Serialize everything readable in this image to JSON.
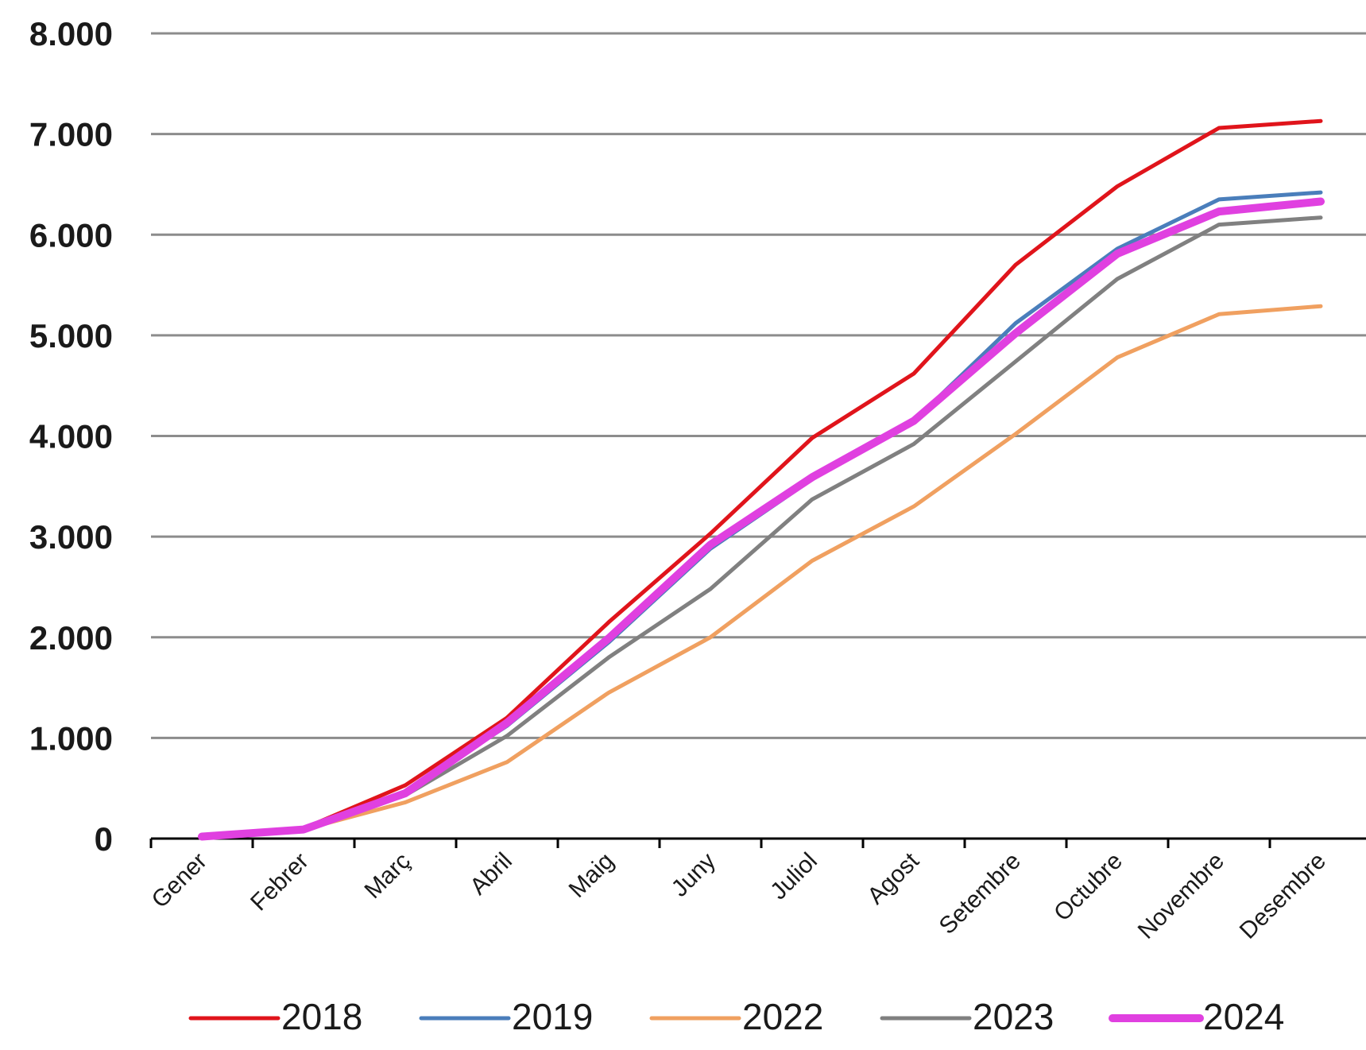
{
  "chart_data": {
    "type": "line",
    "title": "",
    "xlabel": "",
    "ylabel": "",
    "categories": [
      "Gener",
      "Febrer",
      "Març",
      "Abril",
      "Maig",
      "Juny",
      "Juliol",
      "Agost",
      "Setembre",
      "Octubre",
      "Novembre",
      "Desembre"
    ],
    "ylim": [
      0,
      8000
    ],
    "yticks": [
      0,
      1000,
      2000,
      3000,
      4000,
      5000,
      6000,
      7000,
      8000
    ],
    "ytick_labels": [
      "0",
      "1.000",
      "2.000",
      "3.000",
      "4.000",
      "5.000",
      "6.000",
      "7.000",
      "8.000"
    ],
    "grid": "horizontal",
    "legend_position": "bottom",
    "series": [
      {
        "name": "2018",
        "color": "#e0141b",
        "values": [
          20,
          100,
          530,
          1200,
          2150,
          3030,
          3980,
          4620,
          5700,
          6480,
          7060,
          7130
        ]
      },
      {
        "name": "2019",
        "color": "#4a7ebb",
        "values": [
          20,
          90,
          470,
          1120,
          1950,
          2880,
          3570,
          4150,
          5120,
          5860,
          6350,
          6420
        ]
      },
      {
        "name": "2022",
        "color": "#f0a060",
        "values": [
          20,
          90,
          360,
          760,
          1450,
          2000,
          2760,
          3300,
          4020,
          4780,
          5210,
          5290
        ]
      },
      {
        "name": "2023",
        "color": "#808080",
        "values": [
          20,
          90,
          430,
          1020,
          1800,
          2480,
          3370,
          3920,
          4740,
          5560,
          6100,
          6170
        ]
      },
      {
        "name": "2024",
        "color": "#e040e0",
        "values": [
          20,
          90,
          450,
          1150,
          1990,
          2920,
          3590,
          4150,
          5020,
          5810,
          6230,
          6330
        ]
      }
    ]
  }
}
